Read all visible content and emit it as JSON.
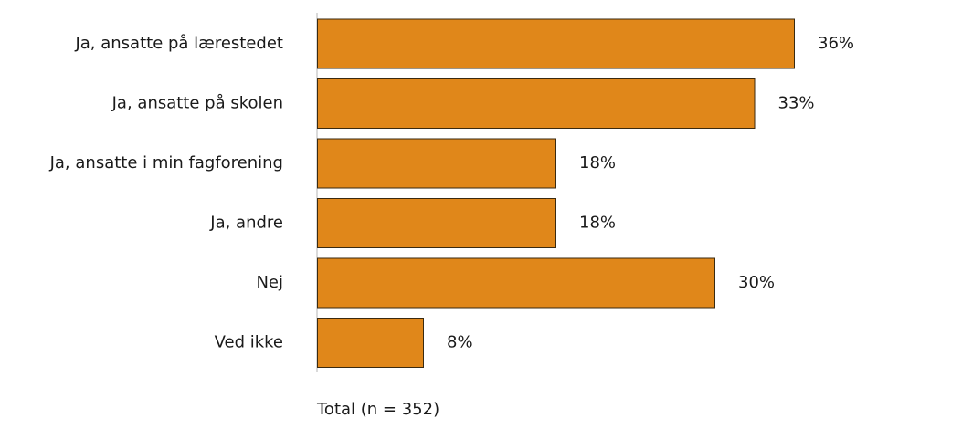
{
  "chart_data": {
    "type": "bar",
    "orientation": "horizontal",
    "categories": [
      "Ja, ansatte på lærestedet",
      "Ja, ansatte på skolen",
      "Ja, ansatte i min fagforening",
      "Ja, andre",
      "Nej",
      "Ved ikke"
    ],
    "values": [
      36,
      33,
      18,
      18,
      30,
      8
    ],
    "value_labels": [
      "36%",
      "33%",
      "18%",
      "18%",
      "30%",
      "8%"
    ],
    "xlim": [
      0,
      40
    ],
    "grid": false,
    "legend": "none",
    "bar_color": "#E0871A",
    "bar_stroke": "#3a2a10"
  },
  "footer": {
    "total": "Total (n = 352)"
  }
}
